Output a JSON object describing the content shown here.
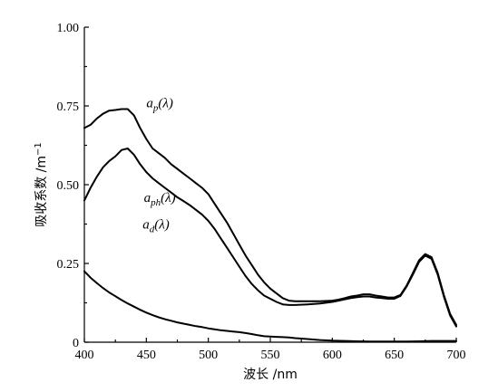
{
  "chart_data": {
    "type": "line",
    "title": "",
    "xlabel": "波长 /nm",
    "ylabel_main": "吸收系数 /m",
    "ylabel_sup": "−1",
    "xlim": [
      400,
      700
    ],
    "ylim": [
      0,
      1
    ],
    "grid": false,
    "x_ticks": [
      400,
      450,
      500,
      550,
      600,
      650,
      700
    ],
    "y_ticks": [
      0,
      0.25,
      0.5,
      0.75,
      1.0
    ],
    "y_tick_labels": [
      "0",
      "0.25",
      "0.50",
      "0.75",
      "1.00"
    ],
    "series": [
      {
        "name": "a_p(λ)",
        "label_main": "a",
        "label_sub": "p",
        "label_rest": "(λ)",
        "label_at": [
          450,
          0.745
        ],
        "points": [
          [
            400,
            0.68
          ],
          [
            405,
            0.69
          ],
          [
            410,
            0.71
          ],
          [
            415,
            0.725
          ],
          [
            420,
            0.735
          ],
          [
            425,
            0.737
          ],
          [
            430,
            0.74
          ],
          [
            435,
            0.74
          ],
          [
            440,
            0.72
          ],
          [
            445,
            0.68
          ],
          [
            450,
            0.645
          ],
          [
            455,
            0.615
          ],
          [
            460,
            0.6
          ],
          [
            465,
            0.585
          ],
          [
            470,
            0.565
          ],
          [
            475,
            0.55
          ],
          [
            480,
            0.535
          ],
          [
            485,
            0.52
          ],
          [
            490,
            0.505
          ],
          [
            495,
            0.49
          ],
          [
            500,
            0.47
          ],
          [
            505,
            0.44
          ],
          [
            510,
            0.41
          ],
          [
            515,
            0.38
          ],
          [
            520,
            0.345
          ],
          [
            525,
            0.31
          ],
          [
            530,
            0.275
          ],
          [
            535,
            0.245
          ],
          [
            540,
            0.215
          ],
          [
            545,
            0.19
          ],
          [
            550,
            0.17
          ],
          [
            555,
            0.155
          ],
          [
            560,
            0.14
          ],
          [
            565,
            0.132
          ],
          [
            570,
            0.13
          ],
          [
            580,
            0.13
          ],
          [
            590,
            0.13
          ],
          [
            600,
            0.132
          ],
          [
            605,
            0.135
          ],
          [
            610,
            0.14
          ],
          [
            615,
            0.145
          ],
          [
            620,
            0.148
          ],
          [
            625,
            0.152
          ],
          [
            630,
            0.152
          ],
          [
            635,
            0.148
          ],
          [
            640,
            0.145
          ],
          [
            645,
            0.142
          ],
          [
            650,
            0.142
          ],
          [
            655,
            0.15
          ],
          [
            660,
            0.18
          ],
          [
            665,
            0.22
          ],
          [
            670,
            0.26
          ],
          [
            675,
            0.28
          ],
          [
            680,
            0.27
          ],
          [
            685,
            0.22
          ],
          [
            690,
            0.15
          ],
          [
            695,
            0.09
          ],
          [
            700,
            0.055
          ]
        ]
      },
      {
        "name": "a_ph(λ)",
        "label_main": "a",
        "label_sub": "ph",
        "label_rest": "(λ)",
        "label_at": [
          448,
          0.445
        ],
        "points": [
          [
            400,
            0.45
          ],
          [
            405,
            0.49
          ],
          [
            410,
            0.525
          ],
          [
            415,
            0.555
          ],
          [
            420,
            0.575
          ],
          [
            425,
            0.59
          ],
          [
            430,
            0.61
          ],
          [
            435,
            0.615
          ],
          [
            440,
            0.595
          ],
          [
            445,
            0.565
          ],
          [
            450,
            0.54
          ],
          [
            455,
            0.52
          ],
          [
            460,
            0.505
          ],
          [
            465,
            0.49
          ],
          [
            470,
            0.475
          ],
          [
            475,
            0.46
          ],
          [
            480,
            0.448
          ],
          [
            485,
            0.435
          ],
          [
            490,
            0.42
          ],
          [
            495,
            0.405
          ],
          [
            500,
            0.385
          ],
          [
            505,
            0.36
          ],
          [
            510,
            0.33
          ],
          [
            515,
            0.3
          ],
          [
            520,
            0.27
          ],
          [
            525,
            0.24
          ],
          [
            530,
            0.21
          ],
          [
            535,
            0.185
          ],
          [
            540,
            0.165
          ],
          [
            545,
            0.148
          ],
          [
            550,
            0.138
          ],
          [
            555,
            0.128
          ],
          [
            560,
            0.12
          ],
          [
            565,
            0.118
          ],
          [
            570,
            0.118
          ],
          [
            580,
            0.12
          ],
          [
            590,
            0.123
          ],
          [
            600,
            0.128
          ],
          [
            605,
            0.132
          ],
          [
            610,
            0.136
          ],
          [
            615,
            0.14
          ],
          [
            620,
            0.143
          ],
          [
            625,
            0.145
          ],
          [
            630,
            0.145
          ],
          [
            635,
            0.142
          ],
          [
            640,
            0.14
          ],
          [
            645,
            0.138
          ],
          [
            650,
            0.138
          ],
          [
            655,
            0.147
          ],
          [
            660,
            0.177
          ],
          [
            665,
            0.215
          ],
          [
            670,
            0.255
          ],
          [
            675,
            0.275
          ],
          [
            680,
            0.265
          ],
          [
            685,
            0.215
          ],
          [
            690,
            0.145
          ],
          [
            695,
            0.085
          ],
          [
            700,
            0.05
          ]
        ]
      },
      {
        "name": "a_d(λ)",
        "label_main": "a",
        "label_sub": "d",
        "label_rest": "(λ)",
        "label_at": [
          447,
          0.36
        ],
        "points": [
          [
            400,
            0.225
          ],
          [
            405,
            0.205
          ],
          [
            410,
            0.188
          ],
          [
            415,
            0.172
          ],
          [
            420,
            0.158
          ],
          [
            425,
            0.146
          ],
          [
            430,
            0.134
          ],
          [
            435,
            0.123
          ],
          [
            440,
            0.113
          ],
          [
            445,
            0.103
          ],
          [
            450,
            0.094
          ],
          [
            455,
            0.086
          ],
          [
            460,
            0.079
          ],
          [
            465,
            0.073
          ],
          [
            470,
            0.068
          ],
          [
            475,
            0.063
          ],
          [
            480,
            0.059
          ],
          [
            485,
            0.055
          ],
          [
            490,
            0.051
          ],
          [
            495,
            0.048
          ],
          [
            500,
            0.044
          ],
          [
            505,
            0.041
          ],
          [
            510,
            0.038
          ],
          [
            515,
            0.036
          ],
          [
            520,
            0.034
          ],
          [
            525,
            0.032
          ],
          [
            530,
            0.029
          ],
          [
            535,
            0.026
          ],
          [
            540,
            0.022
          ],
          [
            545,
            0.019
          ],
          [
            550,
            0.018
          ],
          [
            555,
            0.017
          ],
          [
            560,
            0.016
          ],
          [
            565,
            0.015
          ],
          [
            570,
            0.013
          ],
          [
            580,
            0.01
          ],
          [
            590,
            0.007
          ],
          [
            600,
            0.005
          ],
          [
            610,
            0.004
          ],
          [
            620,
            0.003
          ],
          [
            630,
            0.002
          ],
          [
            640,
            0.002
          ],
          [
            650,
            0.002
          ],
          [
            660,
            0.002
          ],
          [
            670,
            0.003
          ],
          [
            680,
            0.004
          ],
          [
            690,
            0.004
          ],
          [
            700,
            0.004
          ]
        ]
      }
    ]
  }
}
